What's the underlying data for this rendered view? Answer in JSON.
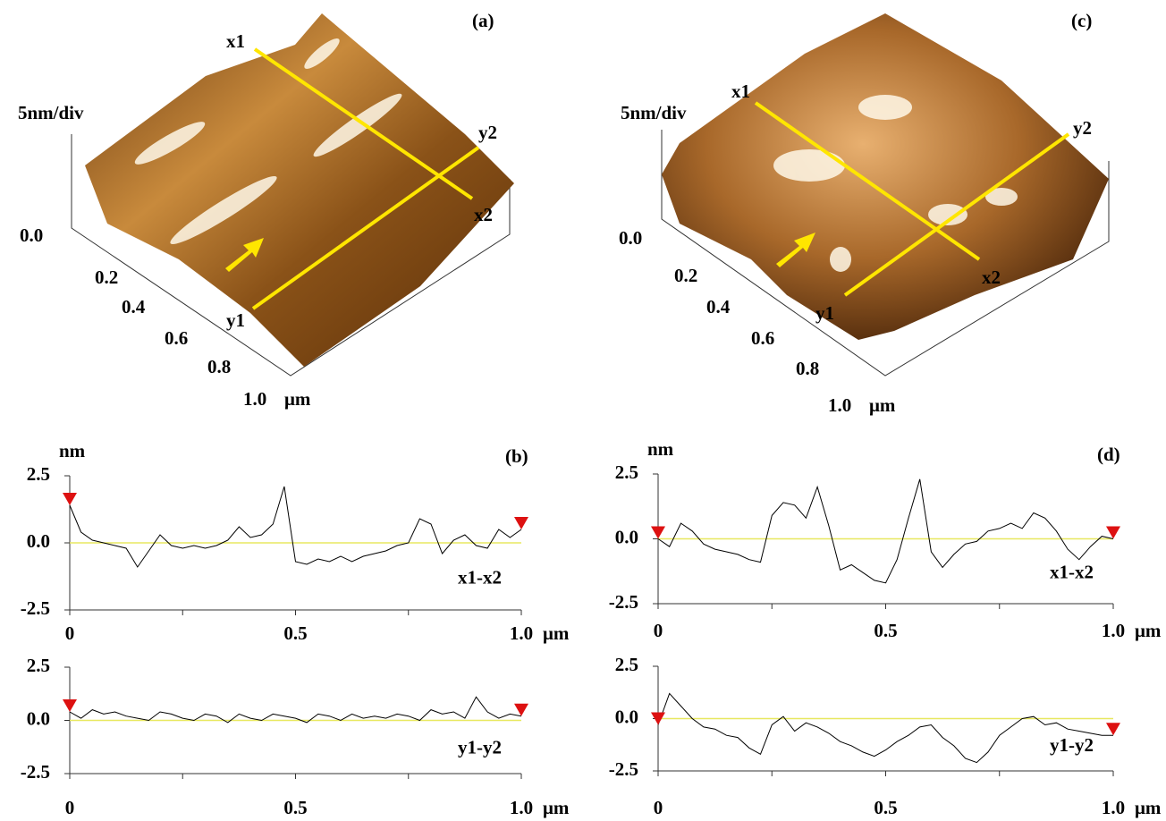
{
  "images": [
    {
      "label": "(a)",
      "scale": "5nm/div",
      "z_zero": "0.0",
      "ticks": [
        "0.2",
        "0.4",
        "0.6",
        "0.8",
        "1.0"
      ],
      "unit": "μm",
      "x1": "x1",
      "x2": "x2",
      "y1": "y1",
      "y2": "y2"
    },
    {
      "label": "(c)",
      "scale": "5nm/div",
      "z_zero": "0.0",
      "ticks": [
        "0.2",
        "0.4",
        "0.6",
        "0.8",
        "1.0"
      ],
      "unit": "μm",
      "x1": "x1",
      "x2": "x2",
      "y1": "y1",
      "y2": "y2"
    }
  ],
  "chart_data": [
    {
      "type": "line",
      "title": "(b)",
      "y_label": "nm",
      "x": [
        0,
        0.025,
        0.05,
        0.075,
        0.1,
        0.125,
        0.15,
        0.175,
        0.2,
        0.225,
        0.25,
        0.275,
        0.3,
        0.325,
        0.35,
        0.375,
        0.4,
        0.425,
        0.45,
        0.475,
        0.5,
        0.525,
        0.55,
        0.575,
        0.6,
        0.625,
        0.65,
        0.675,
        0.7,
        0.725,
        0.75,
        0.775,
        0.8,
        0.825,
        0.85,
        0.875,
        0.9,
        0.925,
        0.95,
        0.975,
        1
      ],
      "series": [
        {
          "name": "x1-x2",
          "color": "#000000",
          "values": [
            1.4,
            0.4,
            0.1,
            0.0,
            -0.1,
            -0.2,
            -0.9,
            -0.3,
            0.3,
            -0.1,
            -0.2,
            -0.1,
            -0.2,
            -0.1,
            0.1,
            0.6,
            0.2,
            0.3,
            0.7,
            2.1,
            -0.7,
            -0.8,
            -0.6,
            -0.7,
            -0.5,
            -0.7,
            -0.5,
            -0.4,
            -0.3,
            -0.1,
            0.0,
            0.9,
            0.7,
            -0.4,
            0.1,
            0.3,
            -0.1,
            -0.2,
            0.5,
            0.2,
            0.5
          ]
        }
      ],
      "xlim": [
        0,
        1
      ],
      "ylim": [
        -2.5,
        2.5
      ],
      "xticks": [
        0,
        0.5,
        {
          "value": 1,
          "label": "1.0"
        }
      ],
      "minor_xticks": [
        0.25,
        0.75
      ],
      "yticks": [
        -2.5,
        {
          "value": 0,
          "label": "0.0"
        },
        2.5
      ],
      "x_unit": "μm",
      "zero_line_color": "#e8e860",
      "marker_color": "#dd1111"
    },
    {
      "type": "line",
      "x": [
        0,
        0.025,
        0.05,
        0.075,
        0.1,
        0.125,
        0.15,
        0.175,
        0.2,
        0.225,
        0.25,
        0.275,
        0.3,
        0.325,
        0.35,
        0.375,
        0.4,
        0.425,
        0.45,
        0.475,
        0.5,
        0.525,
        0.55,
        0.575,
        0.6,
        0.625,
        0.65,
        0.675,
        0.7,
        0.725,
        0.75,
        0.775,
        0.8,
        0.825,
        0.85,
        0.875,
        0.9,
        0.925,
        0.95,
        0.975,
        1
      ],
      "series": [
        {
          "name": "y1-y2",
          "color": "#000000",
          "values": [
            0.4,
            0.1,
            0.5,
            0.3,
            0.4,
            0.2,
            0.1,
            0.0,
            0.4,
            0.3,
            0.1,
            0.0,
            0.3,
            0.2,
            -0.1,
            0.3,
            0.1,
            0.0,
            0.3,
            0.2,
            0.1,
            -0.1,
            0.3,
            0.2,
            0.0,
            0.3,
            0.1,
            0.2,
            0.1,
            0.3,
            0.2,
            0.0,
            0.5,
            0.3,
            0.4,
            0.1,
            1.1,
            0.4,
            0.1,
            0.3,
            0.2
          ]
        }
      ],
      "xlim": [
        0,
        1
      ],
      "ylim": [
        -2.5,
        2.5
      ],
      "xticks": [
        0,
        0.5,
        {
          "value": 1,
          "label": "1.0"
        }
      ],
      "minor_xticks": [
        0.25,
        0.75
      ],
      "yticks": [
        -2.5,
        {
          "value": 0,
          "label": "0.0"
        },
        2.5
      ],
      "x_unit": "μm",
      "zero_line_color": "#e8e860",
      "marker_color": "#dd1111"
    },
    {
      "type": "line",
      "title": "(d)",
      "y_label": "nm",
      "x": [
        0,
        0.025,
        0.05,
        0.075,
        0.1,
        0.125,
        0.15,
        0.175,
        0.2,
        0.225,
        0.25,
        0.275,
        0.3,
        0.325,
        0.35,
        0.375,
        0.4,
        0.425,
        0.45,
        0.475,
        0.5,
        0.525,
        0.55,
        0.575,
        0.6,
        0.625,
        0.65,
        0.675,
        0.7,
        0.725,
        0.75,
        0.775,
        0.8,
        0.825,
        0.85,
        0.875,
        0.9,
        0.925,
        0.95,
        0.975,
        1
      ],
      "series": [
        {
          "name": "x1-x2",
          "color": "#000000",
          "values": [
            0.0,
            -0.3,
            0.6,
            0.3,
            -0.2,
            -0.4,
            -0.5,
            -0.6,
            -0.8,
            -0.9,
            0.9,
            1.4,
            1.3,
            0.8,
            2.0,
            0.5,
            -1.2,
            -1.0,
            -1.3,
            -1.6,
            -1.7,
            -0.8,
            0.8,
            2.3,
            -0.5,
            -1.1,
            -0.6,
            -0.2,
            -0.1,
            0.3,
            0.4,
            0.6,
            0.4,
            1.0,
            0.8,
            0.3,
            -0.4,
            -0.8,
            -0.3,
            0.1,
            0.0
          ]
        }
      ],
      "xlim": [
        0,
        1
      ],
      "ylim": [
        -2.5,
        2.5
      ],
      "xticks": [
        0,
        0.5,
        {
          "value": 1,
          "label": "1.0"
        }
      ],
      "minor_xticks": [
        0.25,
        0.75
      ],
      "yticks": [
        -2.5,
        {
          "value": 0,
          "label": "0.0"
        },
        2.5
      ],
      "x_unit": "μm",
      "zero_line_color": "#e8e860",
      "marker_color": "#dd1111"
    },
    {
      "type": "line",
      "x": [
        0,
        0.025,
        0.05,
        0.075,
        0.1,
        0.125,
        0.15,
        0.175,
        0.2,
        0.225,
        0.25,
        0.275,
        0.3,
        0.325,
        0.35,
        0.375,
        0.4,
        0.425,
        0.45,
        0.475,
        0.5,
        0.525,
        0.55,
        0.575,
        0.6,
        0.625,
        0.65,
        0.675,
        0.7,
        0.725,
        0.75,
        0.775,
        0.8,
        0.825,
        0.85,
        0.875,
        0.9,
        0.925,
        0.95,
        0.975,
        1
      ],
      "series": [
        {
          "name": "y1-y2",
          "color": "#000000",
          "values": [
            -0.3,
            1.2,
            0.6,
            0.0,
            -0.4,
            -0.5,
            -0.8,
            -0.9,
            -1.4,
            -1.7,
            -0.3,
            0.1,
            -0.6,
            -0.2,
            -0.4,
            -0.7,
            -1.1,
            -1.3,
            -1.6,
            -1.8,
            -1.5,
            -1.1,
            -0.8,
            -0.4,
            -0.3,
            -0.9,
            -1.3,
            -1.9,
            -2.1,
            -1.6,
            -0.8,
            -0.4,
            0.0,
            0.1,
            -0.3,
            -0.2,
            -0.5,
            -0.6,
            -0.7,
            -0.8,
            -0.8
          ]
        }
      ],
      "xlim": [
        0,
        1
      ],
      "ylim": [
        -2.5,
        2.5
      ],
      "xticks": [
        0,
        0.5,
        {
          "value": 1,
          "label": "1.0"
        }
      ],
      "minor_xticks": [
        0.25,
        0.75
      ],
      "yticks": [
        -2.5,
        {
          "value": 0,
          "label": "0.0"
        },
        2.5
      ],
      "x_unit": "μm",
      "zero_line_color": "#e8e860",
      "marker_color": "#dd1111"
    }
  ]
}
